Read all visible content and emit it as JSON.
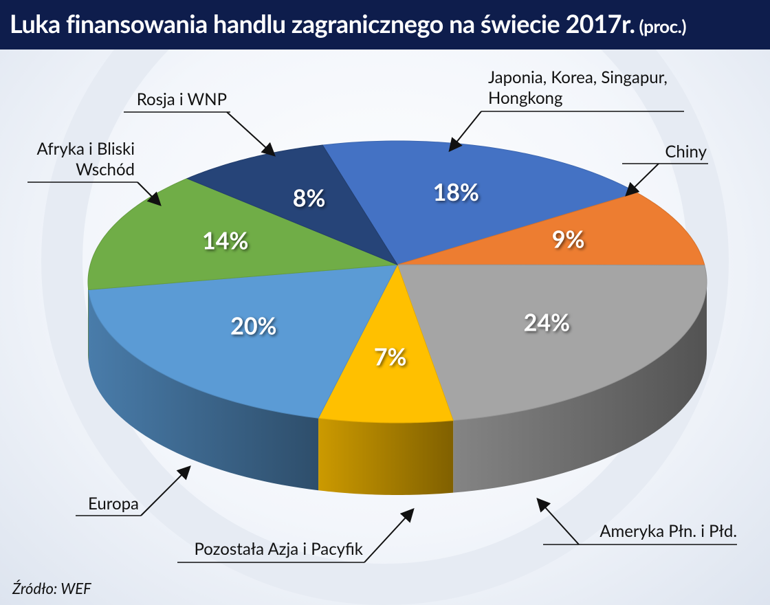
{
  "chart_data": {
    "type": "pie3d",
    "title": "Luka finansowania handlu zagranicznego na świecie 2017r.",
    "subtitle": "(proc.)",
    "source": "Źródło: WEF",
    "categories": [
      "Japonia, Korea, Singapur, Hongkong",
      "Chiny",
      "Ameryka Płn. i Płd.",
      "Pozostała Azja i Pacyfik",
      "Europa",
      "Afryka i Bliski Wschód",
      "Rosja i WNP"
    ],
    "values": [
      18,
      9,
      24,
      7,
      20,
      14,
      8
    ],
    "value_labels": [
      "18%",
      "9%",
      "24%",
      "7%",
      "20%",
      "14%",
      "8%"
    ],
    "colors": [
      "#4472c4",
      "#ed7d31",
      "#a5a5a5",
      "#ffc000",
      "#5b9bd5",
      "#70ad47",
      "#264478"
    ]
  }
}
